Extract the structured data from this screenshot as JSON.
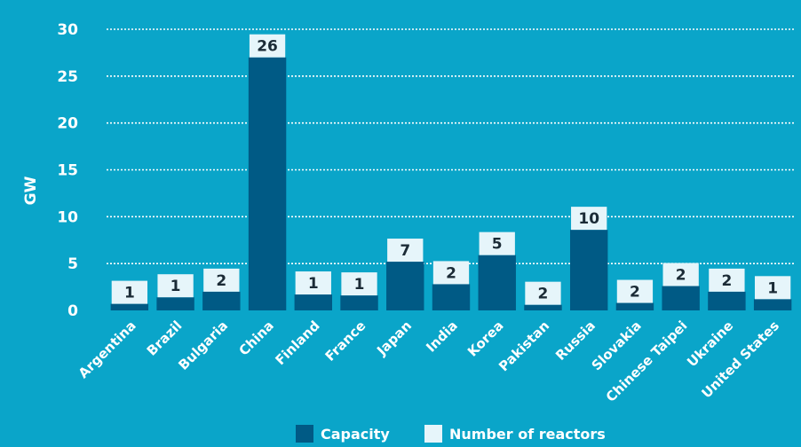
{
  "colors": {
    "background": "#0aa5c9",
    "capacity_bar": "#005a85",
    "reactor_box": "#e6f5fa",
    "text": "#ffffff",
    "box_text": "#1b2b36"
  },
  "chart_data": {
    "type": "bar",
    "ylabel": "GW",
    "ylim": [
      0,
      30
    ],
    "yticks": [
      "0",
      "5",
      "10",
      "15",
      "20",
      "25",
      "30"
    ],
    "grid": "horizontal dotted",
    "categories": [
      "Argentina",
      "Brazil",
      "Bulgaria",
      "China",
      "Finland",
      "France",
      "Japan",
      "India",
      "Korea",
      "Pakistan",
      "Russia",
      "Slovakia",
      "Chinese Taipei",
      "Ukraine",
      "United States"
    ],
    "series": [
      {
        "name": "Capacity",
        "values": [
          0.7,
          1.4,
          2.0,
          27.0,
          1.7,
          1.6,
          5.2,
          2.8,
          5.9,
          0.6,
          8.6,
          0.8,
          2.6,
          2.0,
          1.2
        ]
      },
      {
        "name": "Number of reactors",
        "values": [
          1,
          1,
          2,
          26,
          1,
          1,
          7,
          2,
          5,
          2,
          10,
          2,
          2,
          2,
          1
        ]
      }
    ],
    "legend_position": "bottom-center"
  }
}
